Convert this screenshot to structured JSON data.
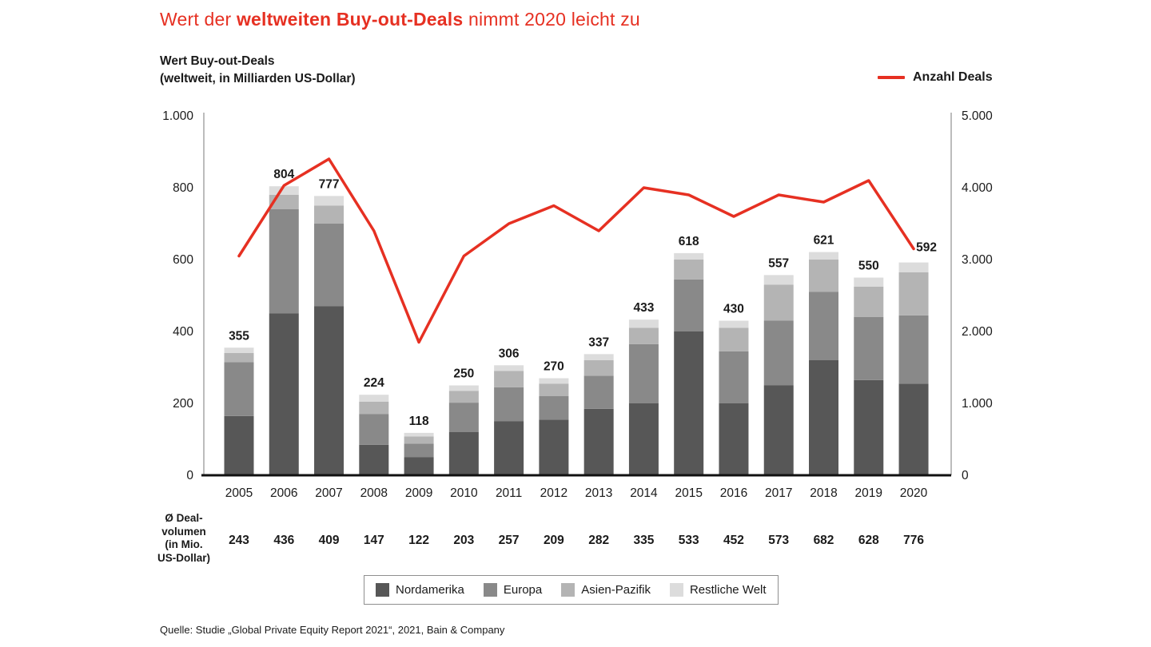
{
  "title": {
    "prefix": "Wert der ",
    "highlight": "weltweiten Buy-out-Deals",
    "suffix": " nimmt 2020 leicht zu"
  },
  "axis_title": {
    "line1": "Wert Buy-out-Deals",
    "line2": "(weltweit, in Milliarden US-Dollar)"
  },
  "line_legend_label": "Anzahl Deals",
  "avg_row": {
    "label_lines": [
      "Ø Deal-",
      "volumen",
      "(in Mio.",
      "US-Dollar)"
    ],
    "values": [
      "243",
      "436",
      "409",
      "147",
      "122",
      "203",
      "257",
      "209",
      "282",
      "335",
      "533",
      "452",
      "573",
      "682",
      "628",
      "776"
    ]
  },
  "legend": {
    "items": [
      {
        "label": "Nordamerika",
        "color": "#575757"
      },
      {
        "label": "Europa",
        "color": "#898989"
      },
      {
        "label": "Asien-Pazifik",
        "color": "#b4b4b4"
      },
      {
        "label": "Restliche Welt",
        "color": "#dcdcdc"
      }
    ]
  },
  "source": "Quelle: Studie „Global Private Equity Report 2021“, 2021, Bain & Company",
  "colors": {
    "accent_red": "#e63022",
    "axis_gray": "#a6a6a6",
    "baseline_black": "#111111"
  },
  "chart_data": {
    "type": "bar",
    "subtype": "stacked-bar-with-line",
    "categories": [
      "2005",
      "2006",
      "2007",
      "2008",
      "2009",
      "2010",
      "2011",
      "2012",
      "2013",
      "2014",
      "2015",
      "2016",
      "2017",
      "2018",
      "2019",
      "2020"
    ],
    "bar_totals": [
      355,
      804,
      777,
      224,
      118,
      250,
      306,
      270,
      337,
      433,
      618,
      430,
      557,
      621,
      550,
      592
    ],
    "series": [
      {
        "name": "Nordamerika",
        "color": "#575757",
        "values": [
          165,
          450,
          470,
          85,
          50,
          120,
          150,
          155,
          185,
          200,
          400,
          200,
          250,
          320,
          265,
          255
        ]
      },
      {
        "name": "Europa",
        "color": "#898989",
        "values": [
          150,
          290,
          230,
          85,
          38,
          82,
          95,
          65,
          92,
          165,
          145,
          145,
          180,
          190,
          175,
          190
        ]
      },
      {
        "name": "Asien-Pazifik",
        "color": "#b4b4b4",
        "values": [
          25,
          40,
          50,
          35,
          20,
          33,
          45,
          35,
          43,
          45,
          55,
          65,
          100,
          90,
          85,
          120
        ]
      },
      {
        "name": "Restliche Welt",
        "color": "#dcdcdc",
        "values": [
          15,
          24,
          27,
          19,
          10,
          15,
          16,
          15,
          17,
          23,
          18,
          20,
          27,
          21,
          25,
          27
        ]
      }
    ],
    "line_series": {
      "name": "Anzahl Deals",
      "color": "#e63022",
      "values": [
        3050,
        4030,
        4400,
        3400,
        1850,
        3050,
        3500,
        3750,
        3400,
        4000,
        3900,
        3600,
        3900,
        3800,
        4100,
        3150
      ]
    },
    "left_axis": {
      "title": "Wert Buy-out-Deals (weltweit, in Milliarden US-Dollar)",
      "ticks": [
        "0",
        "200",
        "400",
        "600",
        "800",
        "1.000"
      ],
      "max": 1000
    },
    "right_axis": {
      "title": "Anzahl Deals",
      "ticks": [
        "0",
        "1.000",
        "2.000",
        "3.000",
        "4.000",
        "5.000"
      ],
      "max": 5000
    },
    "grid": false,
    "legend_position": "bottom"
  }
}
